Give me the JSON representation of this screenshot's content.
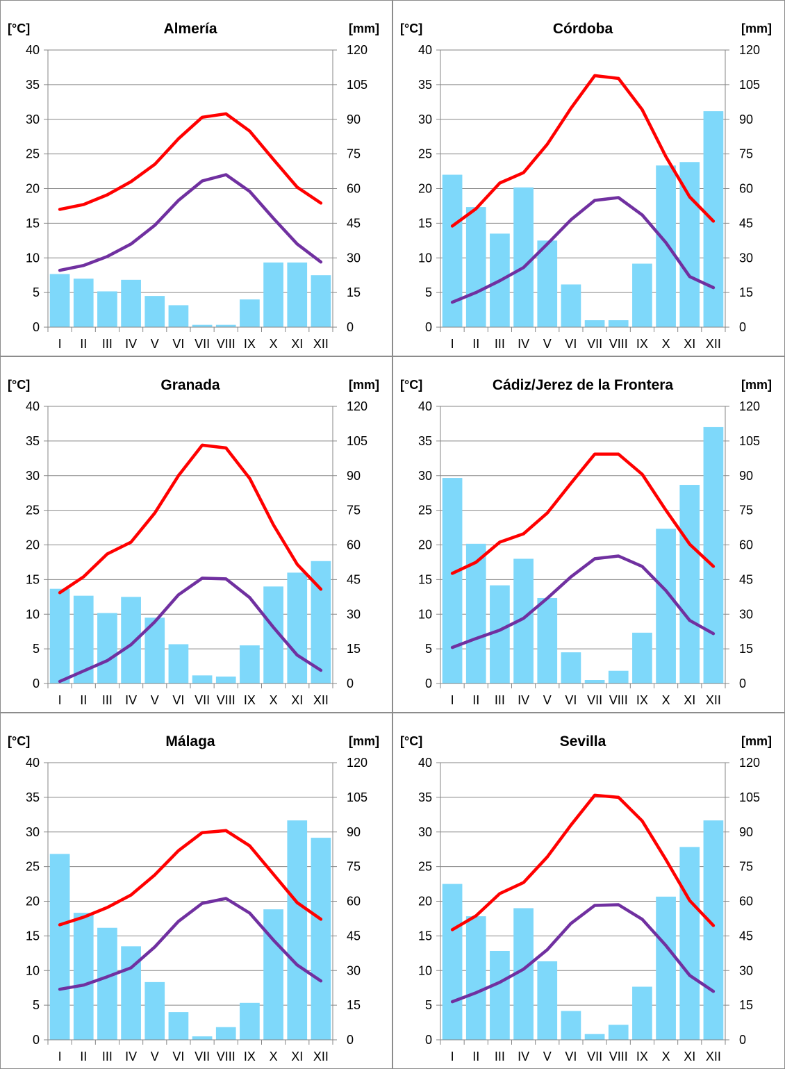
{
  "units": {
    "left": "[°C]",
    "right": "[mm]"
  },
  "colors": {
    "precip": "#7ED8FA",
    "tmax": "#FF0000",
    "tmin": "#7030A0",
    "grid": "#868686"
  },
  "chart_data": [
    {
      "type": "bar+line",
      "title": "Almería",
      "categories": [
        "I",
        "II",
        "III",
        "IV",
        "V",
        "VI",
        "VII",
        "VIII",
        "IX",
        "X",
        "XI",
        "XII"
      ],
      "yleft": {
        "label": "[°C]",
        "ylim": [
          0,
          40
        ],
        "ticks": [
          "0",
          "5",
          "10",
          "15",
          "20",
          "25",
          "30",
          "35",
          "40"
        ]
      },
      "yright": {
        "label": "[mm]",
        "ylim": [
          0,
          120
        ],
        "ticks": [
          "0",
          "15",
          "30",
          "45",
          "60",
          "75",
          "90",
          "105",
          "120"
        ]
      },
      "precip_mm": [
        23,
        21,
        15.5,
        20.5,
        13.5,
        9.5,
        1,
        1,
        12,
        28,
        28,
        22.5
      ],
      "tmax": [
        17,
        17.7,
        19.1,
        21,
        23.5,
        27.2,
        30.3,
        30.8,
        28.3,
        24.2,
        20.2,
        17.9
      ],
      "tmin": [
        8.2,
        8.9,
        10.2,
        12,
        14.7,
        18.3,
        21.1,
        22,
        19.6,
        15.7,
        12,
        9.4
      ]
    },
    {
      "type": "bar+line",
      "title": "Córdoba",
      "categories": [
        "I",
        "II",
        "III",
        "IV",
        "V",
        "VI",
        "VII",
        "VIII",
        "IX",
        "X",
        "XI",
        "XII"
      ],
      "yleft": {
        "label": "[°C]",
        "ylim": [
          0,
          40
        ],
        "ticks": [
          "0",
          "5",
          "10",
          "15",
          "20",
          "25",
          "30",
          "35",
          "40"
        ]
      },
      "yright": {
        "label": "[mm]",
        "ylim": [
          0,
          120
        ],
        "ticks": [
          "0",
          "15",
          "30",
          "45",
          "60",
          "75",
          "90",
          "105",
          "120"
        ]
      },
      "precip_mm": [
        66,
        52,
        40.5,
        60.5,
        37.5,
        18.5,
        3,
        3,
        27.5,
        70,
        71.5,
        93.5
      ],
      "tmax": [
        14.6,
        17.1,
        20.8,
        22.3,
        26.4,
        31.6,
        36.3,
        35.9,
        31.4,
        24.6,
        18.8,
        15.3
      ],
      "tmin": [
        3.6,
        5,
        6.7,
        8.6,
        12,
        15.5,
        18.3,
        18.7,
        16.2,
        12.2,
        7.3,
        5.7
      ]
    },
    {
      "type": "bar+line",
      "title": "Granada",
      "categories": [
        "I",
        "II",
        "III",
        "IV",
        "V",
        "VI",
        "VII",
        "VIII",
        "IX",
        "X",
        "XI",
        "XII"
      ],
      "yleft": {
        "label": "[°C]",
        "ylim": [
          0,
          40
        ],
        "ticks": [
          "0",
          "5",
          "10",
          "15",
          "20",
          "25",
          "30",
          "35",
          "40"
        ]
      },
      "yright": {
        "label": "[mm]",
        "ylim": [
          0,
          120
        ],
        "ticks": [
          "0",
          "15",
          "30",
          "45",
          "60",
          "75",
          "90",
          "105",
          "120"
        ]
      },
      "precip_mm": [
        41,
        38,
        30.5,
        37.5,
        28.5,
        17,
        3.5,
        3,
        16.5,
        42,
        48,
        53
      ],
      "tmax": [
        13.1,
        15.4,
        18.7,
        20.4,
        24.6,
        30,
        34.4,
        34,
        29.6,
        22.9,
        17.2,
        13.6
      ],
      "tmin": [
        0.3,
        1.8,
        3.3,
        5.6,
        8.9,
        12.8,
        15.2,
        15.1,
        12.4,
        8.1,
        4.1,
        1.9
      ]
    },
    {
      "type": "bar+line",
      "title": "Cádiz/Jerez de la Frontera",
      "categories": [
        "I",
        "II",
        "III",
        "IV",
        "V",
        "VI",
        "VII",
        "VIII",
        "IX",
        "X",
        "XI",
        "XII"
      ],
      "yleft": {
        "label": "[°C]",
        "ylim": [
          0,
          40
        ],
        "ticks": [
          "0",
          "5",
          "10",
          "15",
          "20",
          "25",
          "30",
          "35",
          "40"
        ]
      },
      "yright": {
        "label": "[mm]",
        "ylim": [
          0,
          120
        ],
        "ticks": [
          "0",
          "15",
          "30",
          "45",
          "60",
          "75",
          "90",
          "105",
          "120"
        ]
      },
      "precip_mm": [
        89,
        60.5,
        42.5,
        54,
        37,
        13.5,
        1.5,
        5.5,
        22,
        67,
        86,
        111
      ],
      "tmax": [
        15.9,
        17.5,
        20.4,
        21.6,
        24.6,
        28.9,
        33.1,
        33.1,
        30.2,
        25,
        20.1,
        16.9
      ],
      "tmin": [
        5.2,
        6.5,
        7.7,
        9.4,
        12.3,
        15.4,
        18,
        18.4,
        16.9,
        13.4,
        9.1,
        7.2
      ]
    },
    {
      "type": "bar+line",
      "title": "Málaga",
      "categories": [
        "I",
        "II",
        "III",
        "IV",
        "V",
        "VI",
        "VII",
        "VIII",
        "IX",
        "X",
        "XI",
        "XII"
      ],
      "yleft": {
        "label": "[°C]",
        "ylim": [
          0,
          40
        ],
        "ticks": [
          "0",
          "5",
          "10",
          "15",
          "20",
          "25",
          "30",
          "35",
          "40"
        ]
      },
      "yright": {
        "label": "[mm]",
        "ylim": [
          0,
          120
        ],
        "ticks": [
          "0",
          "15",
          "30",
          "45",
          "60",
          "75",
          "90",
          "105",
          "120"
        ]
      },
      "precip_mm": [
        80.5,
        55,
        48.5,
        40.5,
        25,
        12,
        1.5,
        5.5,
        16,
        56.5,
        95,
        87.5
      ],
      "tmax": [
        16.6,
        17.7,
        19.1,
        20.9,
        23.8,
        27.3,
        29.9,
        30.2,
        28,
        23.9,
        19.8,
        17.4
      ],
      "tmin": [
        7.3,
        7.9,
        9.1,
        10.4,
        13.4,
        17.1,
        19.7,
        20.4,
        18.3,
        14.4,
        10.8,
        8.5
      ]
    },
    {
      "type": "bar+line",
      "title": "Sevilla",
      "categories": [
        "I",
        "II",
        "III",
        "IV",
        "V",
        "VI",
        "VII",
        "VIII",
        "IX",
        "X",
        "XI",
        "XII"
      ],
      "yleft": {
        "label": "[°C]",
        "ylim": [
          0,
          40
        ],
        "ticks": [
          "0",
          "5",
          "10",
          "15",
          "20",
          "25",
          "30",
          "35",
          "40"
        ]
      },
      "yright": {
        "label": "[mm]",
        "ylim": [
          0,
          120
        ],
        "ticks": [
          "0",
          "15",
          "30",
          "45",
          "60",
          "75",
          "90",
          "105",
          "120"
        ]
      },
      "precip_mm": [
        67.5,
        53.5,
        38.5,
        57,
        34,
        12.5,
        2.5,
        6.5,
        23,
        62,
        83.5,
        95
      ],
      "tmax": [
        15.9,
        17.9,
        21.1,
        22.7,
        26.4,
        31,
        35.3,
        35,
        31.6,
        26,
        20.1,
        16.5
      ],
      "tmin": [
        5.5,
        6.8,
        8.3,
        10.2,
        13,
        16.8,
        19.4,
        19.5,
        17.4,
        13.6,
        9.3,
        7
      ]
    }
  ]
}
